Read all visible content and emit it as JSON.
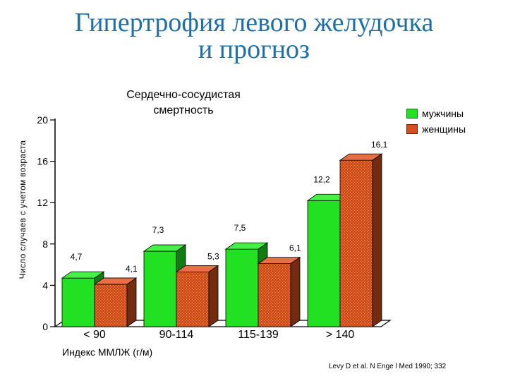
{
  "title_line1": "Гипертрофия левого желудочка",
  "title_line2": "и прогноз",
  "chart_data": {
    "type": "bar",
    "title": "Сердечно-сосудистая смертность",
    "ylabel": "Число случаев с учетом возраста",
    "xlabel": "Индекс ММЛЖ (г/м)",
    "categories": [
      "< 90",
      "90-114",
      "115-139",
      "> 140"
    ],
    "series": [
      {
        "name": "мужчины",
        "values": [
          4.7,
          7.3,
          7.5,
          12.2
        ],
        "labels": [
          "4,7",
          "7,3",
          "7,5",
          "12,2"
        ],
        "color": "#22e022"
      },
      {
        "name": "женщины",
        "values": [
          4.1,
          5.3,
          6.1,
          16.1
        ],
        "labels": [
          "4,1",
          "5,3",
          "6,1",
          "16,1"
        ],
        "color": "#d4501e"
      }
    ],
    "ylim": [
      0,
      20
    ],
    "yticks": [
      0,
      4,
      8,
      12,
      16,
      20
    ],
    "grid": false,
    "legend_position": "top-right"
  },
  "citation": "Levy D et al. N Enge l Med 1990; 332"
}
